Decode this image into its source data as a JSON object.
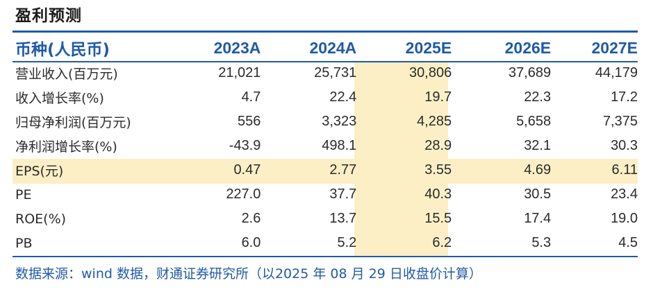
{
  "title": "盈利预测",
  "header": {
    "label": "币种(人民币)",
    "years": [
      "2023A",
      "2024A",
      "2025E",
      "2026E",
      "2027E"
    ]
  },
  "rows": [
    {
      "label": "营业收入(百万元)",
      "values": [
        "21,021",
        "25,731",
        "30,806",
        "37,689",
        "44,179"
      ]
    },
    {
      "label": "收入增长率(%)",
      "values": [
        "4.7",
        "22.4",
        "19.7",
        "22.3",
        "17.2"
      ]
    },
    {
      "label": "归母净利润(百万元)",
      "values": [
        "556",
        "3,323",
        "4,285",
        "5,658",
        "7,375"
      ]
    },
    {
      "label": "净利润增长率(%)",
      "values": [
        "-43.9",
        "498.1",
        "28.9",
        "32.1",
        "30.3"
      ]
    },
    {
      "label": "EPS(元)",
      "values": [
        "0.47",
        "2.77",
        "3.55",
        "4.69",
        "6.11"
      ]
    },
    {
      "label": "PE",
      "values": [
        "227.0",
        "37.7",
        "40.3",
        "30.5",
        "23.4"
      ]
    },
    {
      "label": "ROE(%)",
      "values": [
        "2.6",
        "13.7",
        "15.5",
        "17.4",
        "19.0"
      ]
    },
    {
      "label": "PB",
      "values": [
        "6.0",
        "5.2",
        "6.2",
        "5.3",
        "4.5"
      ]
    }
  ],
  "source": "数据来源：wind 数据，财通证券研究所（以2025 年 08 月 29 日收盘价计算）",
  "colors": {
    "accent": "#1f5aa8",
    "highlight": "#fcefc6",
    "text": "#2a2a2a"
  }
}
